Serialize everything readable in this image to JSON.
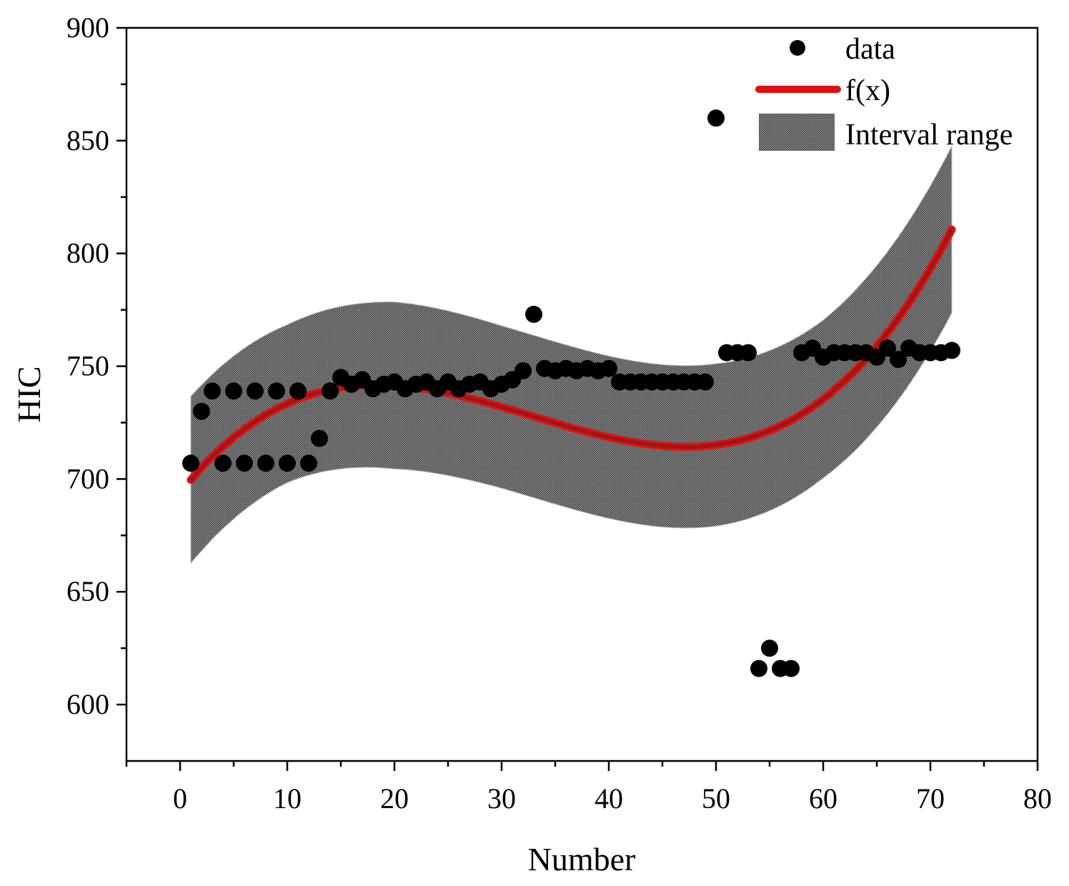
{
  "chart_data": {
    "type": "scatter",
    "title": "",
    "xlabel": "Number",
    "ylabel": "HIC",
    "xlim": [
      -5,
      80
    ],
    "ylim": [
      575,
      900
    ],
    "xticks": [
      0,
      10,
      20,
      30,
      40,
      50,
      60,
      70,
      80
    ],
    "yticks": [
      600,
      650,
      700,
      750,
      800,
      850,
      900
    ],
    "grid": false,
    "legend": {
      "position": "top-right",
      "entries": [
        {
          "label": "data",
          "kind": "marker"
        },
        {
          "label": "f(x)",
          "kind": "line"
        },
        {
          "label": "Interval range",
          "kind": "band"
        }
      ]
    },
    "colors": {
      "data": "#000000",
      "fit": "#e01010",
      "fit_core": "#a01515",
      "band": "#555555"
    },
    "series": [
      {
        "name": "data",
        "kind": "scatter",
        "x": [
          1,
          2,
          3,
          4,
          5,
          6,
          7,
          8,
          9,
          10,
          11,
          12,
          13,
          14,
          15,
          16,
          17,
          18,
          19,
          20,
          21,
          22,
          23,
          24,
          25,
          26,
          27,
          28,
          29,
          30,
          31,
          32,
          33,
          34,
          35,
          36,
          37,
          38,
          39,
          40,
          41,
          42,
          43,
          44,
          45,
          46,
          47,
          48,
          49,
          50,
          51,
          52,
          53,
          54,
          55,
          56,
          57,
          58,
          59,
          60,
          61,
          62,
          63,
          64,
          65,
          66,
          67,
          68,
          69,
          70,
          71,
          72
        ],
        "y": [
          707,
          730,
          739,
          707,
          739,
          707,
          739,
          707,
          739,
          707,
          739,
          707,
          718,
          739,
          745,
          742,
          744,
          740,
          742,
          743,
          740,
          742,
          743,
          740,
          743,
          740,
          742,
          743,
          740,
          742,
          744,
          748,
          773,
          749,
          748,
          749,
          748,
          749,
          748,
          749,
          743,
          743,
          743,
          743,
          743,
          743,
          743,
          743,
          743,
          860,
          756,
          756,
          756,
          616,
          625,
          616,
          616,
          756,
          758,
          754,
          756,
          756,
          756,
          756,
          754,
          758,
          753,
          758,
          756,
          756,
          756,
          757
        ]
      },
      {
        "name": "f(x)",
        "kind": "line",
        "coeffs": [
          693.85,
          5.9853,
          -0.2262,
          0.0023
        ]
      },
      {
        "name": "Interval range",
        "kind": "band",
        "halfwidth_at_x": [
          [
            1,
            37
          ],
          [
            10,
            35
          ],
          [
            20,
            37
          ],
          [
            30,
            36
          ],
          [
            40,
            36
          ],
          [
            50,
            36
          ],
          [
            60,
            35
          ],
          [
            72,
            37
          ]
        ]
      }
    ]
  }
}
